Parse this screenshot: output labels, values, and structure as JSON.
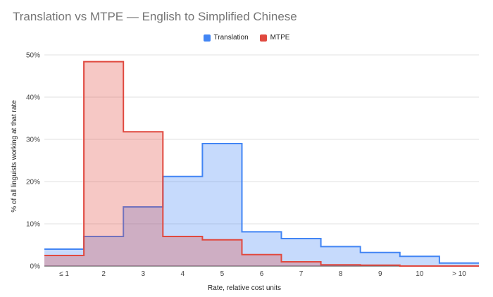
{
  "chart_data": {
    "type": "area",
    "step": true,
    "title": "Translation vs MTPE — English to Simplified Chinese",
    "xlabel": "Rate, relative cost units",
    "ylabel": "% of all linguists working at that rate",
    "categories": [
      "≤ 1",
      "2",
      "3",
      "4",
      "5",
      "6",
      "7",
      "8",
      "9",
      "10",
      "> 10"
    ],
    "series": [
      {
        "name": "Translation",
        "color": "#4285f4",
        "fill": "#c6dafb",
        "values": [
          4.0,
          7.0,
          14.0,
          21.2,
          29.0,
          8.1,
          6.5,
          4.6,
          3.2,
          2.3,
          0.7
        ]
      },
      {
        "name": "MTPE",
        "color": "#e0493f",
        "fill": "#f4b6b1",
        "values": [
          2.5,
          48.4,
          31.8,
          7.0,
          6.2,
          2.7,
          1.0,
          0.3,
          0.2,
          0.0,
          0.0
        ]
      }
    ],
    "ylim": [
      0,
      50
    ],
    "yticks": [
      "0%",
      "10%",
      "20%",
      "30%",
      "40%",
      "50%"
    ],
    "grid": true,
    "legend_position": "top-center"
  }
}
